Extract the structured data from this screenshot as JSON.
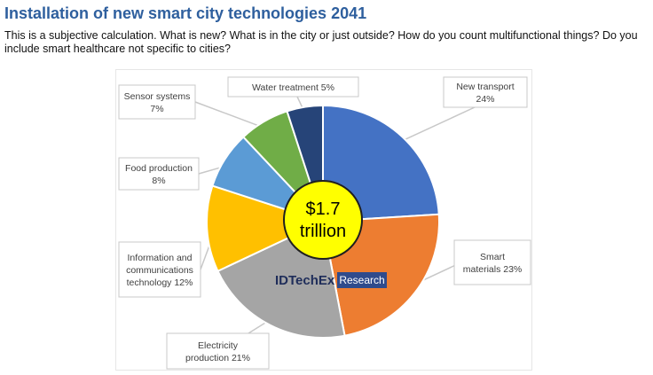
{
  "header": {
    "title": "Installation of new smart city technologies 2041",
    "subtitle": "This is a subjective calculation. What is new? What is in the city or just outside? How do you count multifunctional things? Do you include smart healthcare not specific to cities?"
  },
  "chart_data": {
    "type": "pie",
    "center_label": [
      "$1.7",
      "trillion"
    ],
    "watermark": {
      "brand": "IDTechEx",
      "tag": "Research"
    },
    "slices": [
      {
        "name": "New transport",
        "value": 24,
        "color": "#4472c4",
        "label_lines": [
          "New transport",
          "24%"
        ]
      },
      {
        "name": "Smart materials",
        "value": 23,
        "color": "#ed7d31",
        "label_lines": [
          "Smart",
          "materials 23%"
        ]
      },
      {
        "name": "Electricity production",
        "value": 21,
        "color": "#a5a5a5",
        "label_lines": [
          "Electricity",
          "production 21%"
        ]
      },
      {
        "name": "Information and communications technology",
        "value": 12,
        "color": "#ffc000",
        "label_lines": [
          "Information and",
          "communications",
          "technology 12%"
        ]
      },
      {
        "name": "Food production",
        "value": 8,
        "color": "#5b9bd5",
        "label_lines": [
          "Food production",
          "8%"
        ]
      },
      {
        "name": "Sensor systems",
        "value": 7,
        "color": "#70ad47",
        "label_lines": [
          "Sensor systems",
          "7%"
        ]
      },
      {
        "name": "Water treatment",
        "value": 5,
        "color": "#264478",
        "label_lines": [
          "Water treatment 5%"
        ]
      }
    ]
  }
}
